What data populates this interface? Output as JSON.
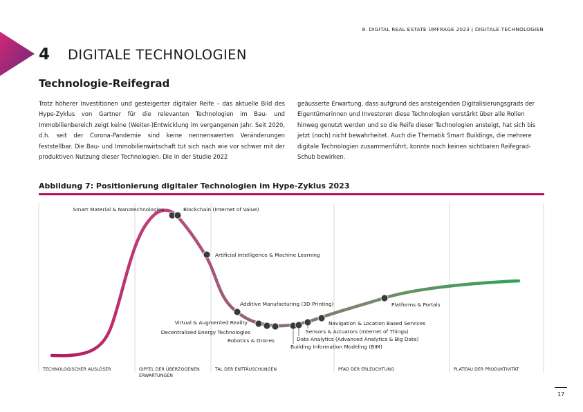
{
  "header": {
    "running_title": "8. DIGITAL REAL ESTATE UMFRAGE 2023 | DIGITALE TECHNOLOGIEN"
  },
  "chapter": {
    "number": "4",
    "title": "DIGITALE TECHNOLOGIEN"
  },
  "section": {
    "title": "Technologie-Reifegrad"
  },
  "body": {
    "left": "Trotz höherer Investitionen und gesteigerter digitaler Reife – das aktuelle Bild des Hype-Zyklus von Gartner für die relevanten Technologien im Bau- und Immobilienbereich zeigt keine (Weiter-)Entwicklung im vergangenen Jahr. Seit 2020, d.h. seit der Corona-Pandemie sind keine nennenswerten Veränderungen feststellbar. Die Bau- und Immobilienwirtschaft tut sich nach wie vor schwer mit der produktiven Nutzung dieser Technologien. Die in der Studie 2022",
    "right": "geäusserte Erwartung, dass aufgrund des ansteigenden Digitalisierungsgrads der Eigentümerinnen und Investoren diese Technologien verstärkt über alle Rollen hinweg genutzt werden und so die Reife dieser Technologien ansteigt, hat sich bis jetzt (noch) nicht bewahrheitet. Auch die Thematik Smart Buildings, die mehrere digitale Technologien zusammenführt, konnte noch keinen sichtbaren Reifegrad-Schub bewirken."
  },
  "figure": {
    "title": "Abbildung 7: Positionierung digitaler Technologien im Hype-Zyklus 2023",
    "phases": [
      {
        "lines": [
          "TECHNOLOGISCHER AUSLÖSER"
        ]
      },
      {
        "lines": [
          "GIPFEL DER ÜBERZOGENEN",
          "ERWARTUNGEN"
        ]
      },
      {
        "lines": [
          "TAL DER ENTTÄUSCHUNGEN"
        ]
      },
      {
        "lines": [
          "PFAD DER ERLEUCHTUNG"
        ]
      },
      {
        "lines": [
          "PLATEAU DER PRODUKTIVITÄT"
        ]
      }
    ],
    "technologies": [
      "Smart Material & Nanotechnologies",
      "Blockchain (Internet of Value)",
      "Artificial Intelligence & Machine Learning",
      "Additive Manufacturing (3D Printing)",
      "Virtual & Augmented Reality",
      "Decentralized Energy Technologies",
      "Robotics & Drones",
      "Building Information Modeling (BIM)",
      "Data Analytics (Advanced Analytics & Big Data)",
      "Sensors & Actuators (Internet of Things)",
      "Navigation & Location Based Services",
      "Platforms & Portals"
    ],
    "colors": {
      "accent": "#b0105a",
      "start": "#b3145e",
      "mid": "#8c6878",
      "end": "#2ea35a"
    }
  },
  "footer": {
    "page_number": "17"
  }
}
